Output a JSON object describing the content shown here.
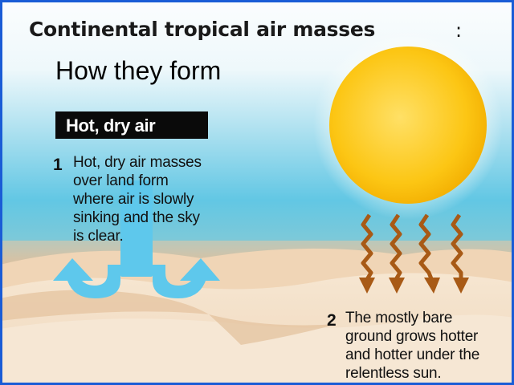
{
  "title": "Continental tropical air masses",
  "title_colon": ":",
  "subtitle": "How they form",
  "badge": "Hot, dry air",
  "steps": [
    {
      "number": "1",
      "lines": [
        "Hot, dry air masses",
        "over land form",
        "where air is slowly",
        "sinking and the sky",
        "is clear."
      ]
    },
    {
      "number": "2",
      "lines": [
        "The mostly bare",
        "ground grows hotter",
        "and hotter under the",
        "relentless sun."
      ]
    }
  ],
  "colors": {
    "sky_top": "#ffffff",
    "sky_blue": "#4fc0e0",
    "sand": "#f2dcc2",
    "sun": "#fbc20a",
    "arrow_blue": "#5ec8ec",
    "heat_arrow": "#a85a16",
    "frame_blue": "#1a5cd6"
  },
  "icons": [
    "sun-icon",
    "sinking-air-arrow-icon",
    "heat-wave-arrow-icon"
  ]
}
